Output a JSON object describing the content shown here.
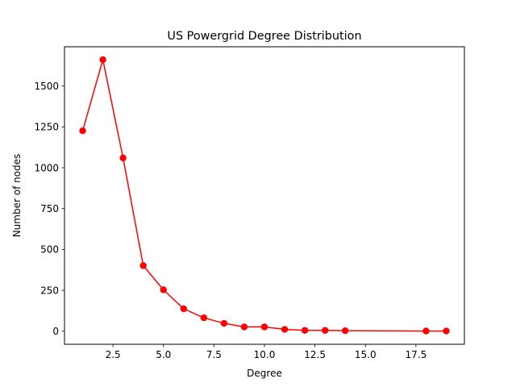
{
  "chart_data": {
    "type": "line",
    "title": "US Powergrid Degree Distribution",
    "xlabel": "Degree",
    "ylabel": "Number of nodes",
    "xlim": [
      0.1,
      19.9
    ],
    "ylim": [
      -80,
      1740
    ],
    "xticks": [
      2.5,
      5.0,
      7.5,
      10.0,
      12.5,
      15.0,
      17.5
    ],
    "xtick_labels": [
      "2.5",
      "5.0",
      "7.5",
      "10.0",
      "12.5",
      "15.0",
      "17.5"
    ],
    "yticks": [
      0,
      250,
      500,
      750,
      1000,
      1250,
      1500
    ],
    "ytick_labels": [
      "0",
      "250",
      "500",
      "750",
      "1000",
      "1250",
      "1500"
    ],
    "grid": false,
    "series": [
      {
        "color": "#ff0000",
        "marker": "circle",
        "x": [
          1,
          2,
          3,
          4,
          5,
          6,
          7,
          8,
          9,
          10,
          11,
          12,
          13,
          14,
          18,
          19
        ],
        "y": [
          1226,
          1661,
          1060,
          401,
          253,
          137,
          82,
          48,
          26,
          26,
          11,
          5,
          5,
          3,
          1,
          1
        ]
      }
    ]
  }
}
